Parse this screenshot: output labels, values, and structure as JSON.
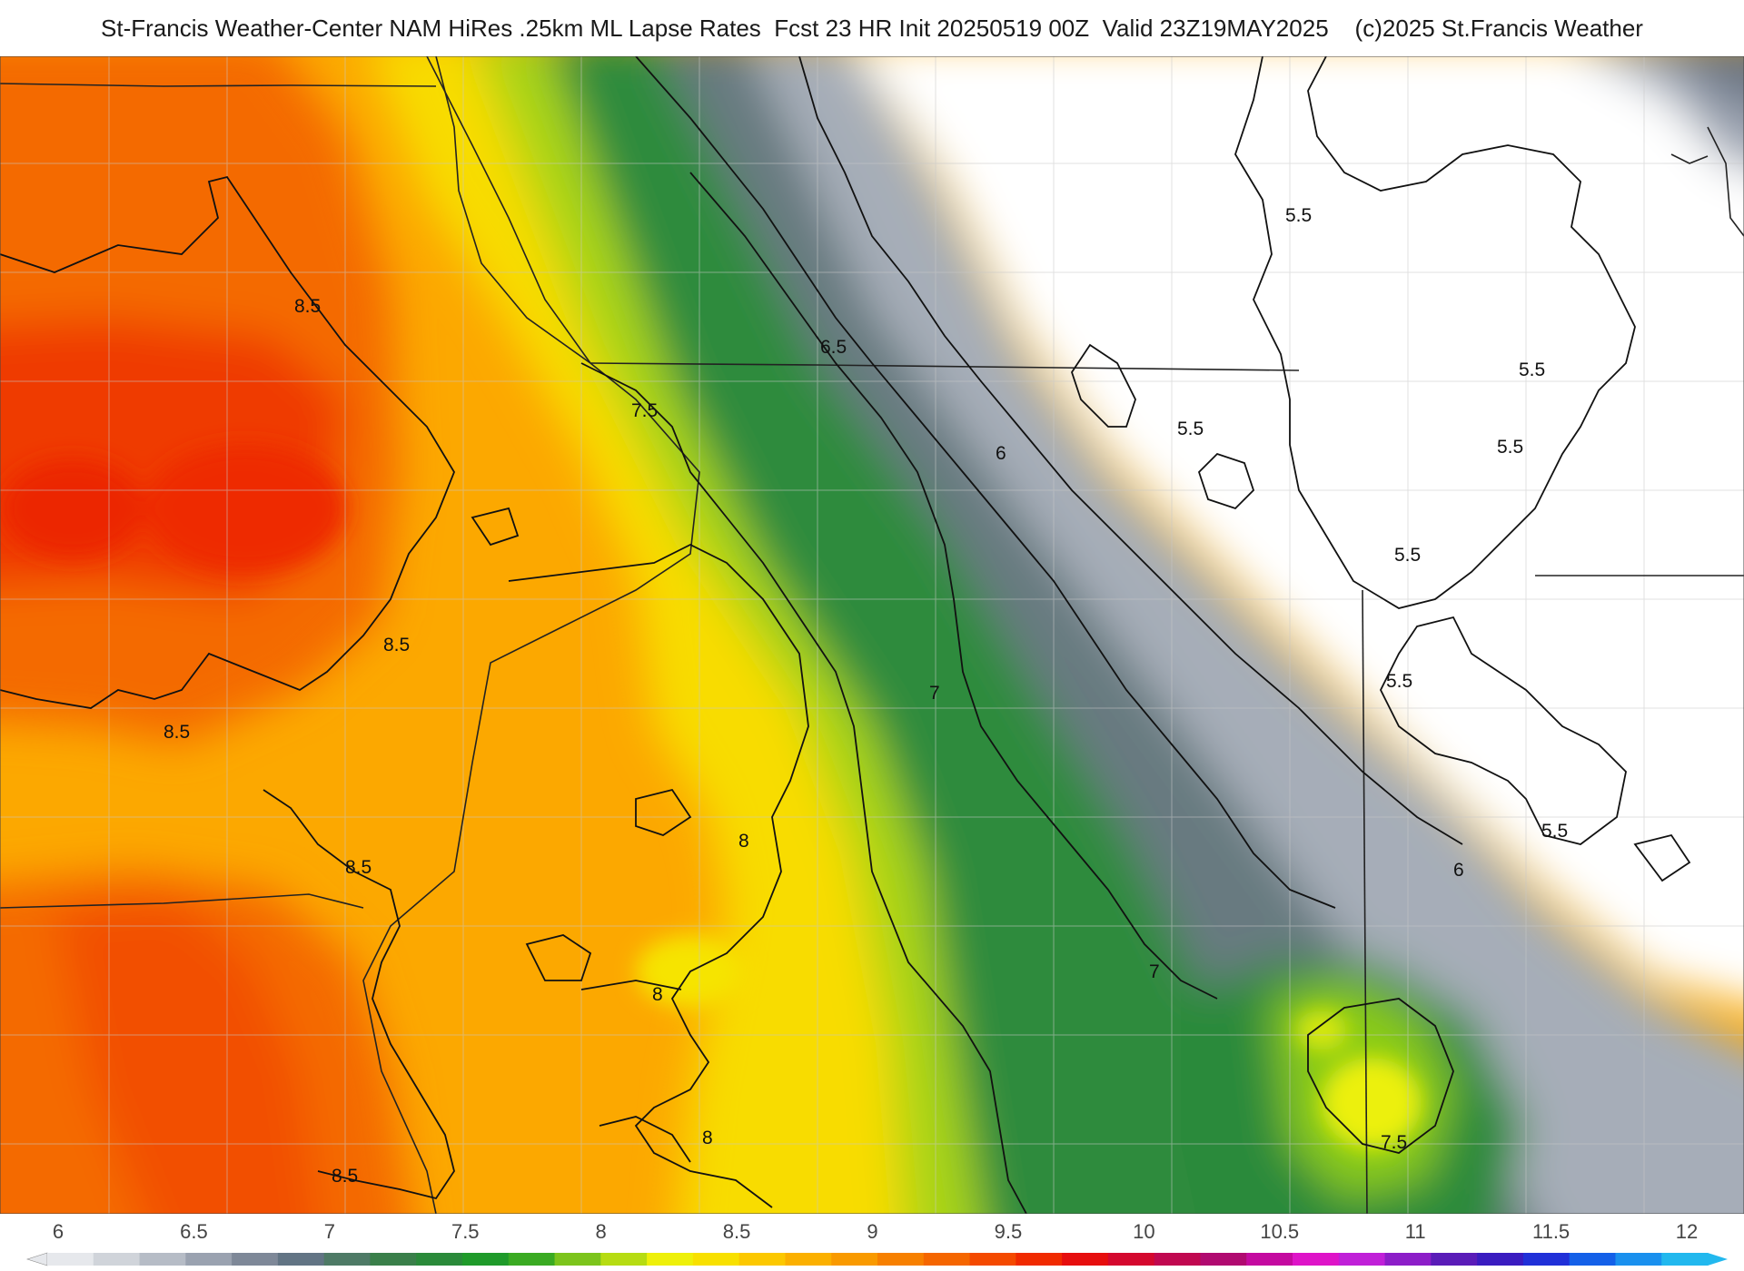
{
  "title": "St-Francis Weather-Center NAM HiRes .25km ML Lapse Rates  Fcst 23 HR Init 20250519 00Z  Valid 23Z19MAY2025    (c)2025 St.Francis Weather",
  "colorbar": {
    "ticks": [
      "6",
      "6.5",
      "7",
      "7.5",
      "8",
      "8.5",
      "9",
      "9.5",
      "10",
      "10.5",
      "11",
      "11.5",
      "12"
    ],
    "colors": [
      "#e6e8ec",
      "#d0d4da",
      "#b6bcc6",
      "#9aa2b0",
      "#7e8898",
      "#627484",
      "#4e7a66",
      "#3a7f4a",
      "#2a8a3a",
      "#1f9a2a",
      "#3aaa22",
      "#7cc41c",
      "#b6dc12",
      "#eef00a",
      "#f8e000",
      "#fcc800",
      "#fbb000",
      "#f99a00",
      "#f78000",
      "#f56600",
      "#f44a00",
      "#f02a00",
      "#e60e0e",
      "#d4082e",
      "#c00850",
      "#b00a70",
      "#c40aa0",
      "#de14c8",
      "#c020d8",
      "#8c1ec8",
      "#5a1cb8",
      "#3a1cc0",
      "#2030d8",
      "#1460e8",
      "#1a90ee",
      "#22b8ee"
    ]
  },
  "contour_labels": [
    {
      "text": "8.5"
    },
    {
      "text": "8.5"
    },
    {
      "text": "8.5"
    },
    {
      "text": "8.5"
    },
    {
      "text": "8.5"
    },
    {
      "text": "8"
    },
    {
      "text": "8"
    },
    {
      "text": "8"
    },
    {
      "text": "7.5"
    },
    {
      "text": "7.5"
    },
    {
      "text": "7"
    },
    {
      "text": "7"
    },
    {
      "text": "6.5"
    },
    {
      "text": "6"
    },
    {
      "text": "6"
    },
    {
      "text": "5.5"
    },
    {
      "text": "5.5"
    },
    {
      "text": "5.5"
    },
    {
      "text": "5.5"
    },
    {
      "text": "5.5"
    },
    {
      "text": "5.5"
    },
    {
      "text": "5.5"
    }
  ]
}
